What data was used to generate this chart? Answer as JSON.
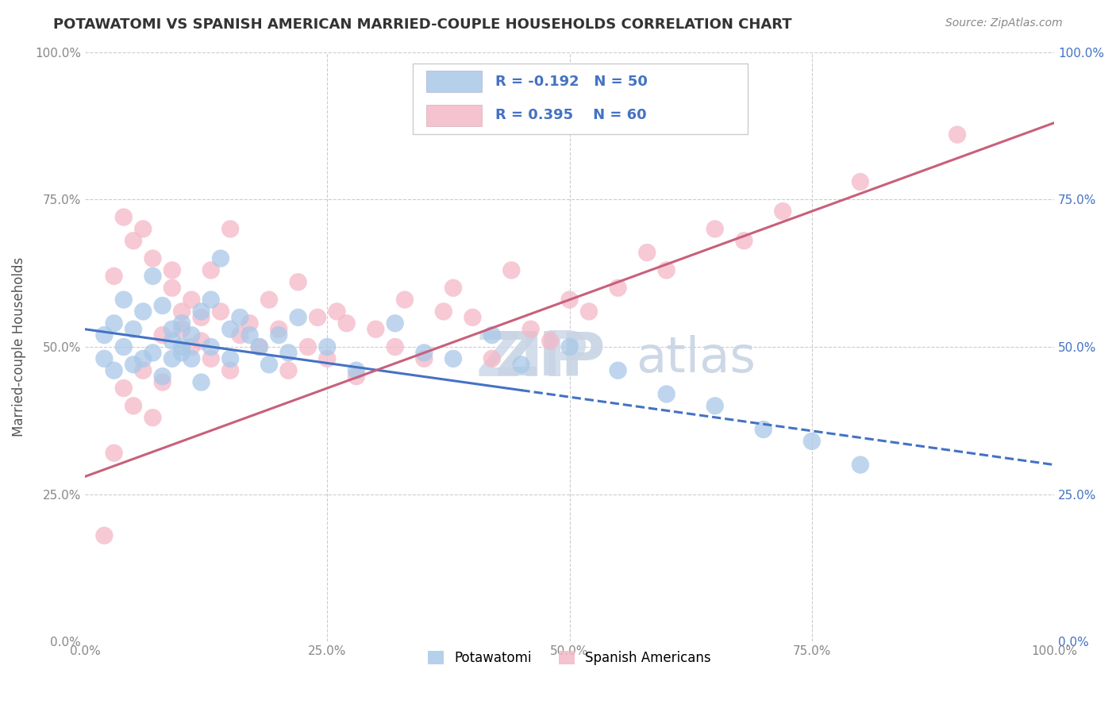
{
  "title": "POTAWATOMI VS SPANISH AMERICAN MARRIED-COUPLE HOUSEHOLDS CORRELATION CHART",
  "source": "Source: ZipAtlas.com",
  "ylabel": "Married-couple Households",
  "xlim": [
    0,
    100
  ],
  "ylim": [
    0,
    100
  ],
  "legend_entries": [
    {
      "label": "Potawatomi",
      "color": "#a8c8e8",
      "R": -0.192,
      "N": 50
    },
    {
      "label": "Spanish Americans",
      "color": "#f4b8c8",
      "R": 0.395,
      "N": 60
    }
  ],
  "blue_color": "#a8c8e8",
  "pink_color": "#f4b8c8",
  "trend_blue": "#4472c4",
  "trend_pink": "#c8607a",
  "watermark_color": "#d0dce8",
  "pot_solid_end": 45,
  "pot_x": [
    2,
    2,
    3,
    3,
    4,
    4,
    5,
    5,
    6,
    6,
    7,
    7,
    8,
    8,
    9,
    9,
    9,
    10,
    10,
    10,
    11,
    11,
    12,
    12,
    13,
    13,
    14,
    15,
    15,
    16,
    17,
    18,
    19,
    20,
    21,
    22,
    25,
    28,
    32,
    35,
    38,
    42,
    45,
    50,
    55,
    60,
    65,
    70,
    75,
    80
  ],
  "pot_y": [
    52,
    48,
    54,
    46,
    50,
    58,
    53,
    47,
    56,
    48,
    62,
    49,
    57,
    45,
    51,
    53,
    48,
    54,
    49,
    50,
    52,
    48,
    56,
    44,
    58,
    50,
    65,
    53,
    48,
    55,
    52,
    50,
    47,
    52,
    49,
    55,
    50,
    46,
    54,
    49,
    48,
    52,
    47,
    50,
    46,
    42,
    40,
    36,
    34,
    30
  ],
  "spa_x": [
    2,
    3,
    3,
    4,
    4,
    5,
    5,
    6,
    6,
    7,
    7,
    8,
    8,
    9,
    9,
    10,
    10,
    11,
    11,
    12,
    12,
    13,
    13,
    14,
    15,
    15,
    16,
    17,
    18,
    19,
    20,
    21,
    22,
    23,
    24,
    25,
    26,
    27,
    28,
    30,
    32,
    33,
    35,
    37,
    38,
    40,
    42,
    44,
    46,
    48,
    50,
    52,
    55,
    58,
    60,
    65,
    68,
    72,
    80,
    90
  ],
  "spa_y": [
    18,
    32,
    62,
    43,
    72,
    40,
    68,
    46,
    70,
    38,
    65,
    52,
    44,
    63,
    60,
    56,
    53,
    50,
    58,
    55,
    51,
    63,
    48,
    56,
    46,
    70,
    52,
    54,
    50,
    58,
    53,
    46,
    61,
    50,
    55,
    48,
    56,
    54,
    45,
    53,
    50,
    58,
    48,
    56,
    60,
    55,
    48,
    63,
    53,
    51,
    58,
    56,
    60,
    66,
    63,
    70,
    68,
    73,
    78,
    86
  ],
  "pot_trend_x0": 0,
  "pot_trend_y0": 53,
  "pot_trend_x1": 100,
  "pot_trend_y1": 30,
  "spa_trend_x0": 0,
  "spa_trend_y0": 28,
  "spa_trend_x1": 100,
  "spa_trend_y1": 88
}
